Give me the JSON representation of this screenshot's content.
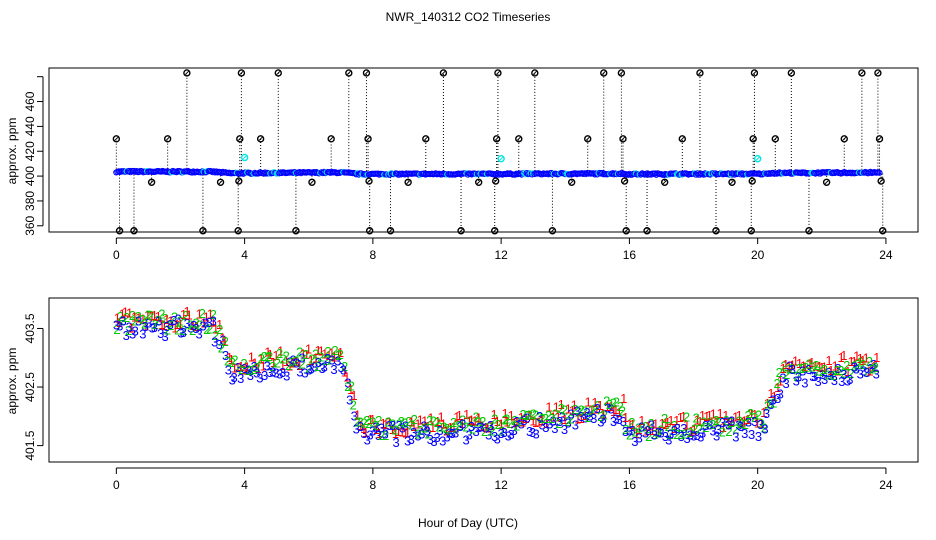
{
  "chart_data": {
    "title": "NWR_140312  CO2 Timeseries",
    "xlabel": "Hour of Day (UTC)",
    "colors": {
      "red": "#ff0000",
      "green": "#00c800",
      "blue": "#0000ff",
      "cyan": "#00e5e5",
      "black": "#000000"
    },
    "panels": [
      {
        "type": "scatter",
        "name": "top",
        "ylabel": "approx. ppm",
        "xlim": [
          -2.1,
          25
        ],
        "ylim": [
          355,
          487
        ],
        "x_ticks": [
          0,
          4,
          8,
          12,
          16,
          20,
          24
        ],
        "x_tick_labels": [
          "0",
          "4",
          "8",
          "12",
          "16",
          "20",
          "24"
        ],
        "y_ticks": [
          360,
          380,
          400,
          420,
          440,
          460,
          480
        ],
        "y_tick_labels": [
          "360",
          "380",
          "400",
          "420",
          "440",
          "460",
          ""
        ],
        "baseline_segments": [
          {
            "x0": 0.0,
            "x1": 3.0,
            "y0": 403.6,
            "y1": 403.5
          },
          {
            "x0": 3.0,
            "x1": 3.6,
            "y0": 403.5,
            "y1": 402.2
          },
          {
            "x0": 3.6,
            "x1": 7.0,
            "y0": 402.3,
            "y1": 402.9
          },
          {
            "x0": 7.0,
            "x1": 7.6,
            "y0": 402.9,
            "y1": 401.6
          },
          {
            "x0": 7.6,
            "x1": 12.5,
            "y0": 401.6,
            "y1": 401.7
          },
          {
            "x0": 12.5,
            "x1": 15.8,
            "y0": 401.8,
            "y1": 402.0
          },
          {
            "x0": 15.8,
            "x1": 20.3,
            "y0": 401.6,
            "y1": 401.8
          },
          {
            "x0": 20.3,
            "x1": 23.8,
            "y0": 402.4,
            "y1": 402.8
          }
        ],
        "spikes": [
          [
            0.0,
            430
          ],
          [
            0.1,
            356
          ],
          [
            0.55,
            356
          ],
          [
            1.1,
            395
          ],
          [
            1.6,
            430
          ],
          [
            2.2,
            483
          ],
          [
            2.7,
            356
          ],
          [
            3.25,
            395
          ],
          [
            3.8,
            356
          ],
          [
            3.82,
            396
          ],
          [
            3.85,
            430
          ],
          [
            3.9,
            483
          ],
          [
            4.5,
            430
          ],
          [
            5.05,
            483
          ],
          [
            5.6,
            356
          ],
          [
            6.1,
            395
          ],
          [
            6.7,
            430
          ],
          [
            7.25,
            483
          ],
          [
            7.8,
            483
          ],
          [
            7.85,
            430
          ],
          [
            7.88,
            396
          ],
          [
            7.9,
            356
          ],
          [
            8.55,
            356
          ],
          [
            9.1,
            395
          ],
          [
            9.65,
            430
          ],
          [
            10.2,
            483
          ],
          [
            10.75,
            356
          ],
          [
            11.3,
            395
          ],
          [
            11.8,
            356
          ],
          [
            11.83,
            396
          ],
          [
            11.86,
            430
          ],
          [
            11.9,
            483
          ],
          [
            12.55,
            430
          ],
          [
            13.05,
            483
          ],
          [
            13.6,
            356
          ],
          [
            14.2,
            395
          ],
          [
            14.7,
            430
          ],
          [
            15.2,
            483
          ],
          [
            15.75,
            483
          ],
          [
            15.8,
            430
          ],
          [
            15.85,
            396
          ],
          [
            15.9,
            356
          ],
          [
            16.55,
            356
          ],
          [
            17.1,
            395
          ],
          [
            17.65,
            430
          ],
          [
            18.2,
            483
          ],
          [
            18.7,
            356
          ],
          [
            19.2,
            395
          ],
          [
            19.8,
            356
          ],
          [
            19.83,
            396
          ],
          [
            19.86,
            430
          ],
          [
            19.9,
            483
          ],
          [
            20.55,
            430
          ],
          [
            21.05,
            483
          ],
          [
            21.6,
            356
          ],
          [
            22.15,
            395
          ],
          [
            22.7,
            430
          ],
          [
            23.25,
            483
          ],
          [
            23.75,
            483
          ],
          [
            23.8,
            430
          ],
          [
            23.85,
            396
          ],
          [
            23.9,
            356
          ]
        ],
        "cyan_points": [
          [
            4.0,
            415
          ],
          [
            12.0,
            414
          ],
          [
            20.0,
            414
          ]
        ]
      },
      {
        "type": "scatter",
        "name": "bottom",
        "ylabel": "approx. ppm",
        "xlim": [
          -2.1,
          25
        ],
        "ylim": [
          401.22,
          404.02
        ],
        "x_ticks": [
          0,
          4,
          8,
          12,
          16,
          20,
          24
        ],
        "x_tick_labels": [
          "0",
          "4",
          "8",
          "12",
          "16",
          "20",
          "24"
        ],
        "y_ticks": [
          401.5,
          402.5,
          403.5
        ],
        "y_tick_labels": [
          "401.5",
          "402.5",
          "403.5"
        ],
        "marker_labels": [
          "1",
          "2",
          "3"
        ],
        "trend_segments": [
          {
            "x0": 0.0,
            "x1": 3.0,
            "y0": 403.55,
            "y1": 403.55
          },
          {
            "x0": 3.0,
            "x1": 3.6,
            "y0": 403.55,
            "y1": 402.85
          },
          {
            "x0": 3.6,
            "x1": 7.0,
            "y0": 402.8,
            "y1": 402.95
          },
          {
            "x0": 7.0,
            "x1": 7.6,
            "y0": 402.95,
            "y1": 401.75
          },
          {
            "x0": 7.6,
            "x1": 12.0,
            "y0": 401.72,
            "y1": 401.8
          },
          {
            "x0": 12.0,
            "x1": 15.8,
            "y0": 401.8,
            "y1": 402.1
          },
          {
            "x0": 15.8,
            "x1": 20.2,
            "y0": 401.72,
            "y1": 401.85
          },
          {
            "x0": 20.2,
            "x1": 20.8,
            "y0": 401.85,
            "y1": 402.7
          },
          {
            "x0": 20.8,
            "x1": 23.8,
            "y0": 402.75,
            "y1": 402.8
          }
        ]
      }
    ]
  }
}
